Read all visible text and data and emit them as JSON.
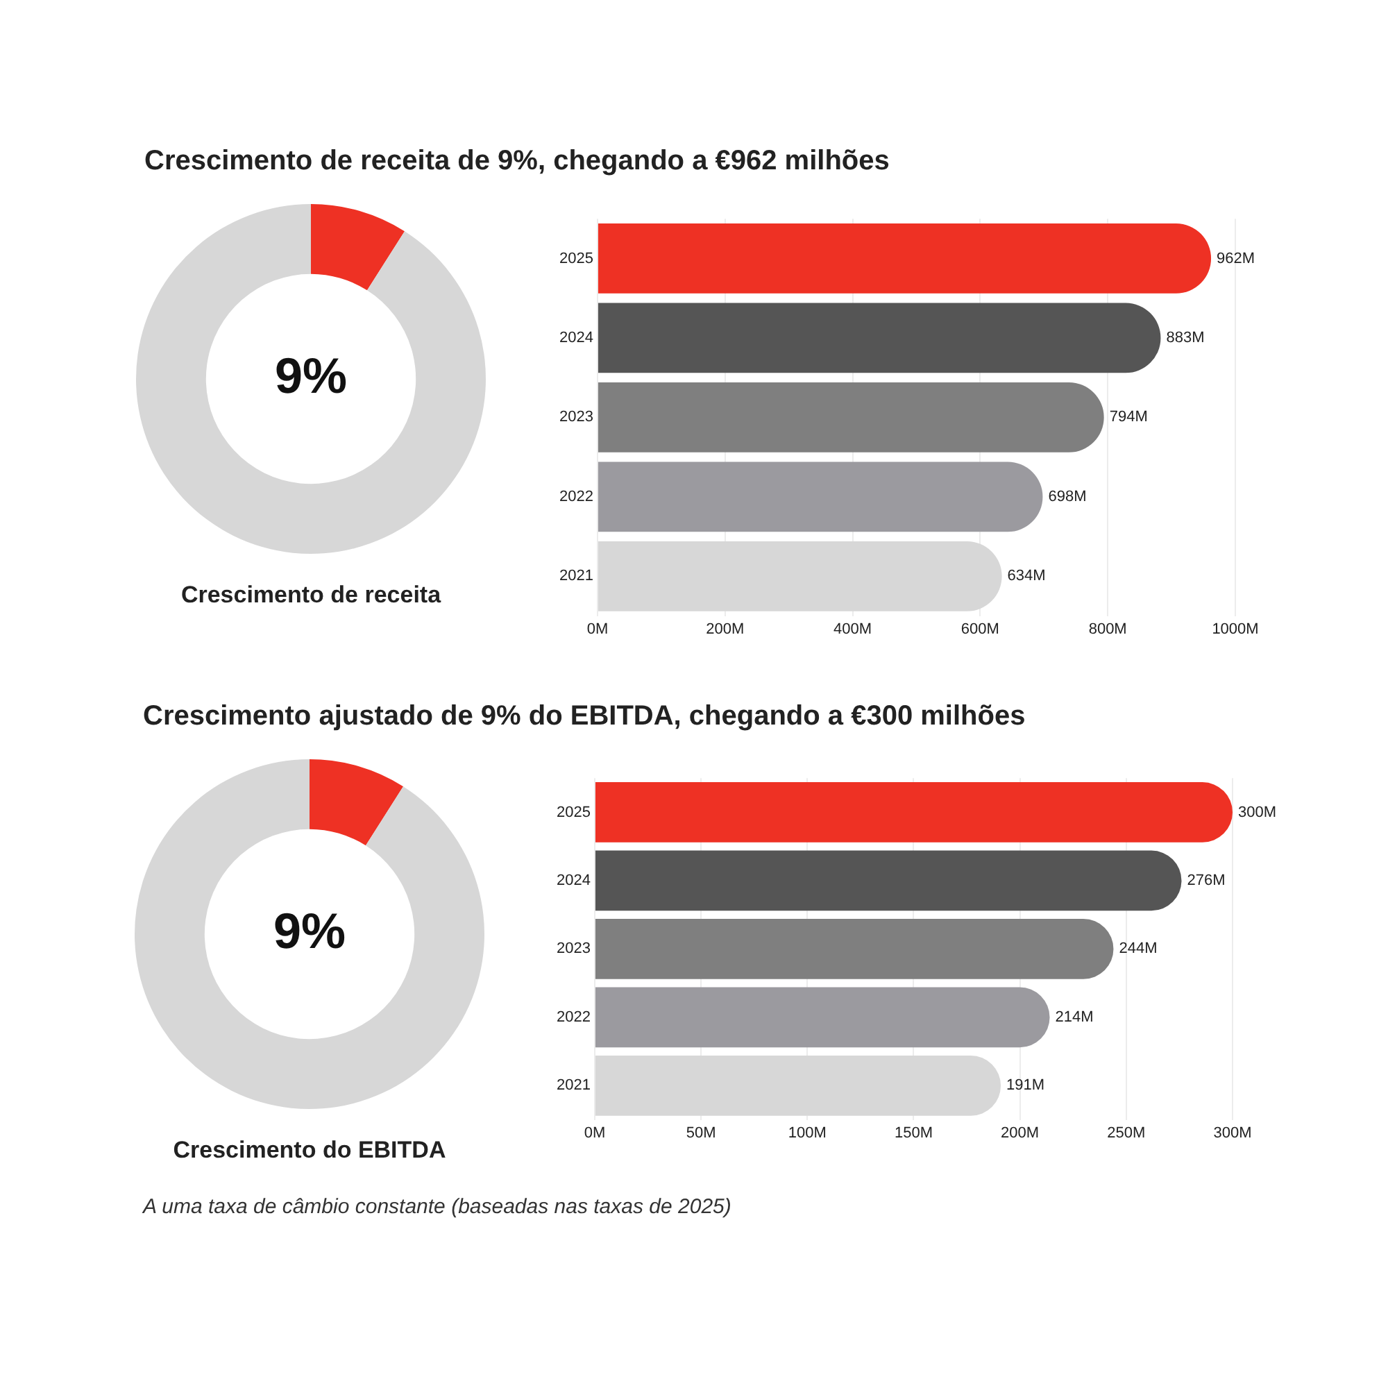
{
  "chart_data": [
    {
      "type": "donut",
      "title": "Crescimento de receita de 9%, chegando a €962 milhões",
      "xlabel": "Crescimento de receita",
      "categories": [
        null,
        null
      ],
      "values": [
        9,
        91
      ],
      "colors": [
        "#ee3124",
        "#d7d7d7"
      ],
      "annotations": [
        "9%"
      ]
    },
    {
      "type": "bar",
      "orientation": "horizontal",
      "categories": [
        "2025",
        "2024",
        "2023",
        "2022",
        "2021"
      ],
      "values": [
        962,
        883,
        794,
        698,
        634
      ],
      "colors": [
        "#ee3124",
        "#555555",
        "#7f7f7f",
        "#9b9a9f",
        "#d7d7d7"
      ],
      "value_labels": [
        "962M",
        "883M",
        "794M",
        "698M",
        "634M"
      ],
      "xlim": [
        0,
        1000
      ],
      "xticks": [
        {
          "value": 0,
          "label": "0M"
        },
        {
          "value": 200,
          "label": "200M"
        },
        {
          "value": 400,
          "label": "400M"
        },
        {
          "value": 600,
          "label": "600M"
        },
        {
          "value": 800,
          "label": "800M"
        },
        {
          "value": 1000,
          "label": "1000M"
        }
      ],
      "grid": "x"
    },
    {
      "type": "donut",
      "title": "Crescimento ajustado de 9% do EBITDA, chegando a €300 milhões",
      "xlabel": "Crescimento do EBITDA",
      "categories": [
        null,
        null
      ],
      "values": [
        9,
        91
      ],
      "colors": [
        "#ee3124",
        "#d7d7d7"
      ],
      "annotations": [
        "9%",
        "A uma taxa de câmbio constante (baseadas nas taxas de 2025)"
      ]
    },
    {
      "type": "bar",
      "orientation": "horizontal",
      "categories": [
        "2025",
        "2024",
        "2023",
        "2022",
        "2021"
      ],
      "values": [
        300,
        276,
        244,
        214,
        191
      ],
      "colors": [
        "#ee3124",
        "#555555",
        "#7f7f7f",
        "#9b9a9f",
        "#d7d7d7"
      ],
      "value_labels": [
        "300M",
        "276M",
        "244M",
        "214M",
        "191M"
      ],
      "xlim": [
        0,
        300
      ],
      "xticks": [
        {
          "value": 0,
          "label": "0M"
        },
        {
          "value": 50,
          "label": "50M"
        },
        {
          "value": 100,
          "label": "100M"
        },
        {
          "value": 150,
          "label": "150M"
        },
        {
          "value": 200,
          "label": "200M"
        },
        {
          "value": 250,
          "label": "250M"
        },
        {
          "value": 300,
          "label": "300M"
        }
      ],
      "grid": "x"
    }
  ]
}
